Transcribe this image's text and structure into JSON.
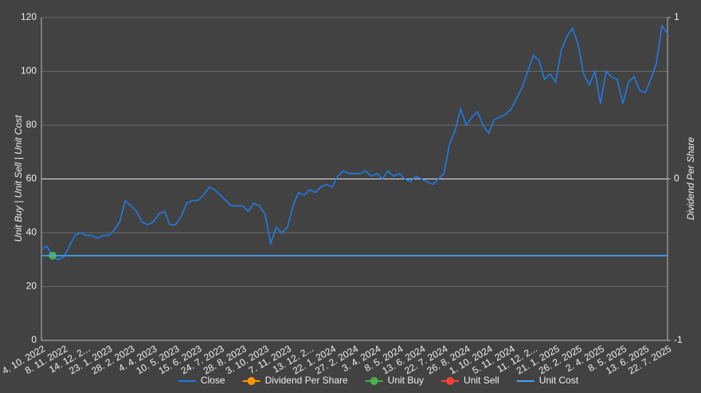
{
  "chart_data": {
    "type": "line",
    "y_label": "Unit Buy | Unit Sell | Unit Cost",
    "y2_label": "Dividend Per Share",
    "categories": [
      "4. 10. 2022",
      null,
      null,
      null,
      "8. 11. 2022",
      null,
      null,
      null,
      "14. 12. 2...",
      null,
      null,
      null,
      "23. 1. 2023",
      null,
      null,
      null,
      "28. 2. 2023",
      null,
      null,
      null,
      "4. 4. 2023",
      null,
      null,
      null,
      "10. 5. 2023",
      null,
      null,
      null,
      "15. 6. 2023",
      null,
      null,
      null,
      "24. 7. 2023",
      null,
      null,
      null,
      "28. 8. 2023",
      null,
      null,
      null,
      "3. 10. 2023",
      null,
      null,
      null,
      "7. 11. 2023",
      null,
      null,
      null,
      "13. 12. 2...",
      null,
      null,
      null,
      "22. 1. 2024",
      null,
      null,
      null,
      "27. 2. 2024",
      null,
      null,
      null,
      "3. 4. 2024",
      null,
      null,
      null,
      "8. 5. 2024",
      null,
      null,
      null,
      "13. 6. 2024",
      null,
      null,
      null,
      "22. 7. 2024",
      null,
      null,
      null,
      "26. 8. 2024",
      null,
      null,
      null,
      "1. 10. 2024",
      null,
      null,
      null,
      "5. 11. 2024",
      null,
      null,
      null,
      "11. 12. 2...",
      null,
      null,
      null,
      "21. 1. 2025",
      null,
      null,
      null,
      "26. 2. 2025",
      null,
      null,
      null,
      "2. 4. 2025",
      null,
      null,
      null,
      "8. 5. 2025",
      null,
      null,
      null,
      "13. 6. 2025",
      null,
      null,
      null,
      "22. 7. 2025"
    ],
    "series": [
      {
        "name": "Close",
        "color": "#1f7ae8",
        "markers": false,
        "values": [
          34,
          35,
          31,
          30,
          31,
          35,
          39,
          40,
          39,
          39,
          38,
          39,
          39,
          41,
          44,
          52,
          50,
          48,
          44,
          43,
          44,
          47,
          48,
          43,
          43,
          46,
          51,
          52,
          52,
          54,
          57,
          56,
          54,
          52,
          50,
          50,
          50,
          48,
          51,
          50,
          47,
          36,
          42,
          40,
          42,
          50,
          55,
          54,
          56,
          55,
          57,
          58,
          57,
          61,
          63,
          62,
          62,
          62,
          63,
          61,
          62,
          60,
          63,
          61,
          62,
          60,
          59,
          61,
          60,
          59,
          58,
          60,
          62,
          73,
          78,
          86,
          80,
          83,
          85,
          80,
          77,
          82,
          83,
          84,
          86,
          90,
          94,
          100,
          106,
          104,
          97,
          99,
          96,
          108,
          113,
          116,
          110,
          99,
          95,
          100,
          88,
          100,
          98,
          97,
          88,
          96,
          98,
          93,
          92,
          97,
          103,
          117,
          114
        ]
      },
      {
        "name": "Dividend Per Share",
        "color": "#ff9800",
        "axis": "y2",
        "markers": true,
        "values": [
          null,
          null,
          null,
          null,
          null,
          null,
          null,
          null,
          null,
          null,
          null,
          null,
          null,
          null,
          null,
          null,
          null,
          null,
          null,
          null,
          null,
          null,
          null,
          null,
          null,
          null,
          null,
          null,
          null,
          null,
          null,
          null,
          null,
          null,
          null,
          null,
          null,
          null,
          null,
          null,
          null,
          null,
          null,
          null,
          null,
          null,
          null,
          null,
          null,
          null,
          null,
          null,
          null,
          null,
          null,
          null,
          null,
          null,
          null,
          null,
          null,
          null,
          null,
          null,
          null,
          null,
          null,
          null,
          null,
          null,
          null,
          null,
          null,
          null,
          null,
          null,
          null,
          null,
          null,
          null,
          null,
          null,
          null,
          null,
          null,
          null,
          null,
          null,
          null,
          null,
          null,
          null,
          null,
          null,
          null,
          null,
          null,
          null,
          null,
          null,
          null,
          null,
          null,
          null,
          null,
          null,
          null,
          null,
          null,
          null,
          null,
          null,
          null
        ]
      },
      {
        "name": "Unit Buy",
        "color": "#4caf50",
        "markers": true,
        "values": [
          null,
          null,
          31.5,
          null,
          null,
          null,
          null,
          null,
          null,
          null,
          null,
          null,
          null,
          null,
          null,
          null,
          null,
          null,
          null,
          null,
          null,
          null,
          null,
          null,
          null,
          null,
          null,
          null,
          null,
          null,
          null,
          null,
          null,
          null,
          null,
          null,
          null,
          null,
          null,
          null,
          null,
          null,
          null,
          null,
          null,
          null,
          null,
          null,
          null,
          null,
          null,
          null,
          null,
          null,
          null,
          null,
          null,
          null,
          null,
          null,
          null,
          null,
          null,
          null,
          null,
          null,
          null,
          null,
          null,
          null,
          null,
          null,
          null,
          null,
          null,
          null,
          null,
          null,
          null,
          null,
          null,
          null,
          null,
          null,
          null,
          null,
          null,
          null,
          null,
          null,
          null,
          null,
          null,
          null,
          null,
          null,
          null,
          null,
          null,
          null,
          null,
          null,
          null,
          null,
          null,
          null,
          null,
          null,
          null,
          null,
          null,
          null,
          null
        ]
      },
      {
        "name": "Unit Sell",
        "color": "#f44336",
        "markers": true,
        "values": [
          null,
          null,
          null,
          null,
          null,
          null,
          null,
          null,
          null,
          null,
          null,
          null,
          null,
          null,
          null,
          null,
          null,
          null,
          null,
          null,
          null,
          null,
          null,
          null,
          null,
          null,
          null,
          null,
          null,
          null,
          null,
          null,
          null,
          null,
          null,
          null,
          null,
          null,
          null,
          null,
          null,
          null,
          null,
          null,
          null,
          null,
          null,
          null,
          null,
          null,
          null,
          null,
          null,
          null,
          null,
          null,
          null,
          null,
          null,
          null,
          null,
          null,
          null,
          null,
          null,
          null,
          null,
          null,
          null,
          null,
          null,
          null,
          null,
          null,
          null,
          null,
          null,
          null,
          null,
          null,
          null,
          null,
          null,
          null,
          null,
          null,
          null,
          null,
          null,
          null,
          null,
          null,
          null,
          null,
          null,
          null,
          null,
          null,
          null,
          null,
          null,
          null,
          null,
          null,
          null,
          null,
          null,
          null,
          null,
          null,
          null,
          null,
          null
        ]
      },
      {
        "name": "Unit Cost",
        "color": "#42a5f5",
        "markers": false,
        "values": [
          31.5,
          31.5,
          31.5,
          31.5,
          31.5,
          31.5,
          31.5,
          31.5,
          31.5,
          31.5,
          31.5,
          31.5,
          31.5,
          31.5,
          31.5,
          31.5,
          31.5,
          31.5,
          31.5,
          31.5,
          31.5,
          31.5,
          31.5,
          31.5,
          31.5,
          31.5,
          31.5,
          31.5,
          31.5,
          31.5,
          31.5,
          31.5,
          31.5,
          31.5,
          31.5,
          31.5,
          31.5,
          31.5,
          31.5,
          31.5,
          31.5,
          31.5,
          31.5,
          31.5,
          31.5,
          31.5,
          31.5,
          31.5,
          31.5,
          31.5,
          31.5,
          31.5,
          31.5,
          31.5,
          31.5,
          31.5,
          31.5,
          31.5,
          31.5,
          31.5,
          31.5,
          31.5,
          31.5,
          31.5,
          31.5,
          31.5,
          31.5,
          31.5,
          31.5,
          31.5,
          31.5,
          31.5,
          31.5,
          31.5,
          31.5,
          31.5,
          31.5,
          31.5,
          31.5,
          31.5,
          31.5,
          31.5,
          31.5,
          31.5,
          31.5,
          31.5,
          31.5,
          31.5,
          31.5,
          31.5,
          31.5,
          31.5,
          31.5,
          31.5,
          31.5,
          31.5,
          31.5,
          31.5,
          31.5,
          31.5,
          31.5,
          31.5,
          31.5,
          31.5,
          31.5,
          31.5,
          31.5,
          31.5,
          31.5,
          31.5,
          31.5,
          31.5,
          31.5
        ]
      }
    ],
    "ylim": [
      0,
      120
    ],
    "yticks": [
      0,
      20,
      40,
      60,
      80,
      100,
      120
    ],
    "y2lim": [
      -1,
      1
    ],
    "y2ticks": [
      -1,
      0,
      1
    ],
    "grid": true,
    "legend": "bottom"
  }
}
